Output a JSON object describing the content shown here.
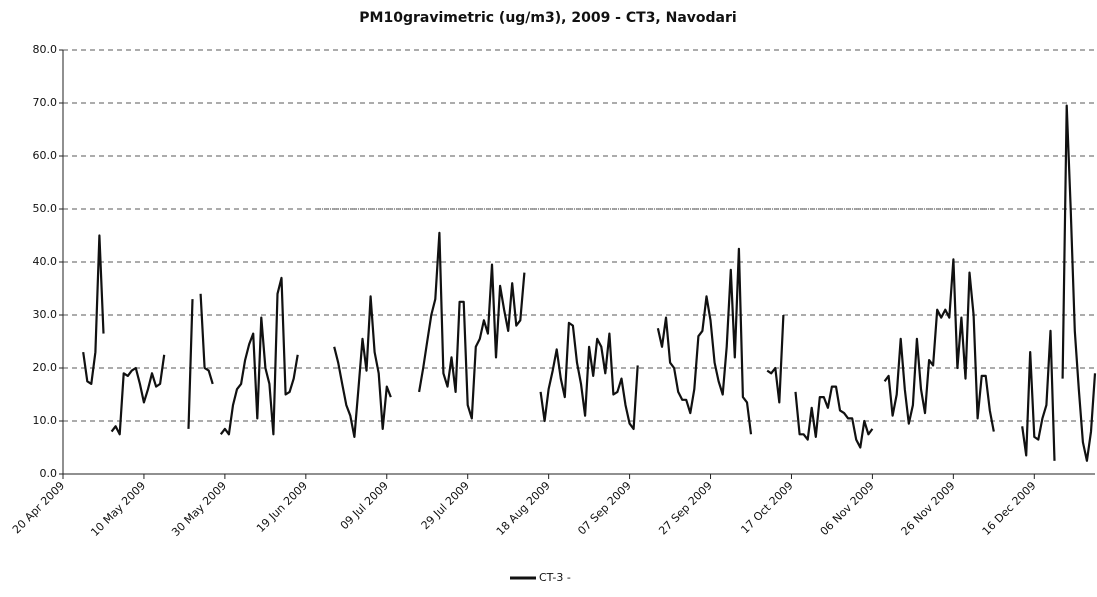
{
  "chart_data": {
    "type": "line",
    "title": "PM10gravimetric (ug/m3), 2009 - CT3, Navodari",
    "x": [
      "2009-04-25",
      "2009-04-26",
      "2009-04-27",
      "2009-04-28",
      "2009-04-29",
      "2009-04-30",
      "2009-05-01",
      "2009-05-02",
      "2009-05-03",
      "2009-05-04",
      "2009-05-05",
      "2009-05-06",
      "2009-05-07",
      "2009-05-08",
      "2009-05-09",
      "2009-05-10",
      "2009-05-11",
      "2009-05-12",
      "2009-05-13",
      "2009-05-14",
      "2009-05-15",
      "2009-05-16",
      "2009-05-21",
      "2009-05-22",
      "2009-05-23",
      "2009-05-24",
      "2009-05-25",
      "2009-05-26",
      "2009-05-27",
      "2009-05-28",
      "2009-05-29",
      "2009-05-30",
      "2009-05-31",
      "2009-06-01",
      "2009-06-02",
      "2009-06-03",
      "2009-06-04",
      "2009-06-05",
      "2009-06-06",
      "2009-06-07",
      "2009-06-08",
      "2009-06-09",
      "2009-06-10",
      "2009-06-11",
      "2009-06-12",
      "2009-06-13",
      "2009-06-14",
      "2009-06-15",
      "2009-06-16",
      "2009-06-17",
      "2009-06-18",
      "2009-06-26",
      "2009-06-27",
      "2009-06-28",
      "2009-06-29",
      "2009-06-30",
      "2009-07-01",
      "2009-07-02",
      "2009-07-03",
      "2009-07-04",
      "2009-07-05",
      "2009-07-06",
      "2009-07-07",
      "2009-07-08",
      "2009-07-09",
      "2009-07-10",
      "2009-07-11",
      "2009-07-17",
      "2009-07-18",
      "2009-07-19",
      "2009-07-20",
      "2009-07-21",
      "2009-07-22",
      "2009-07-23",
      "2009-07-24",
      "2009-07-25",
      "2009-07-26",
      "2009-07-27",
      "2009-07-28",
      "2009-07-29",
      "2009-07-30",
      "2009-07-31",
      "2009-08-01",
      "2009-08-02",
      "2009-08-03",
      "2009-08-04",
      "2009-08-05",
      "2009-08-06",
      "2009-08-07",
      "2009-08-08",
      "2009-08-09",
      "2009-08-10",
      "2009-08-11",
      "2009-08-12",
      "2009-08-13",
      "2009-08-16",
      "2009-08-17",
      "2009-08-18",
      "2009-08-19",
      "2009-08-20",
      "2009-08-21",
      "2009-08-22",
      "2009-08-23",
      "2009-08-24",
      "2009-08-25",
      "2009-08-26",
      "2009-08-27",
      "2009-08-28",
      "2009-08-29",
      "2009-08-30",
      "2009-08-31",
      "2009-09-01",
      "2009-09-02",
      "2009-09-03",
      "2009-09-04",
      "2009-09-05",
      "2009-09-06",
      "2009-09-07",
      "2009-09-08",
      "2009-09-09",
      "2009-09-10",
      "2009-09-14",
      "2009-09-15",
      "2009-09-16",
      "2009-09-17",
      "2009-09-18",
      "2009-09-19",
      "2009-09-20",
      "2009-09-21",
      "2009-09-22",
      "2009-09-23",
      "2009-09-24",
      "2009-09-25",
      "2009-09-26",
      "2009-09-27",
      "2009-09-28",
      "2009-09-29",
      "2009-09-30",
      "2009-10-01",
      "2009-10-02",
      "2009-10-03",
      "2009-10-04",
      "2009-10-05",
      "2009-10-06",
      "2009-10-07",
      "2009-10-08",
      "2009-10-11",
      "2009-10-12",
      "2009-10-13",
      "2009-10-14",
      "2009-10-15",
      "2009-10-16",
      "2009-10-18",
      "2009-10-19",
      "2009-10-20",
      "2009-10-21",
      "2009-10-22",
      "2009-10-23",
      "2009-10-24",
      "2009-10-25",
      "2009-10-26",
      "2009-10-27",
      "2009-10-28",
      "2009-10-29",
      "2009-10-30",
      "2009-10-31",
      "2009-11-01",
      "2009-11-02",
      "2009-11-03",
      "2009-11-04",
      "2009-11-05",
      "2009-11-06",
      "2009-11-07",
      "2009-11-09",
      "2009-11-10",
      "2009-11-11",
      "2009-11-12",
      "2009-11-13",
      "2009-11-14",
      "2009-11-15",
      "2009-11-16",
      "2009-11-17",
      "2009-11-18",
      "2009-11-19",
      "2009-11-20",
      "2009-11-21",
      "2009-11-22",
      "2009-11-23",
      "2009-11-24",
      "2009-11-25",
      "2009-11-26",
      "2009-11-27",
      "2009-11-28",
      "2009-11-29",
      "2009-11-30",
      "2009-12-01",
      "2009-12-02",
      "2009-12-03",
      "2009-12-04",
      "2009-12-05",
      "2009-12-06",
      "2009-12-07",
      "2009-12-13",
      "2009-12-14",
      "2009-12-15",
      "2009-12-16",
      "2009-12-17",
      "2009-12-18",
      "2009-12-19",
      "2009-12-20",
      "2009-12-21",
      "2009-12-22",
      "2009-12-23",
      "2009-12-24",
      "2009-12-25",
      "2009-12-26",
      "2009-12-27",
      "2009-12-28",
      "2009-12-29",
      "2009-12-30",
      "2009-12-31"
    ],
    "series": [
      {
        "name": "CT-3 -",
        "color": "#111111",
        "values": [
          23,
          17.5,
          17,
          23,
          45,
          26.5,
          null,
          8,
          9,
          7.5,
          19,
          18.5,
          19.5,
          20,
          17,
          13.5,
          16,
          19,
          16.5,
          17,
          22.5,
          null,
          8.5,
          33,
          null,
          34,
          20,
          19.5,
          17,
          null,
          7.5,
          8.5,
          7.5,
          13,
          16,
          17,
          21.5,
          24.5,
          26.5,
          10.5,
          29.5,
          20,
          17,
          7.5,
          34,
          37,
          15,
          15.5,
          18,
          22.5,
          null,
          24,
          21,
          17,
          13,
          11,
          7,
          16,
          25.5,
          19.5,
          33.5,
          23,
          19,
          8.5,
          16.5,
          14.5,
          null,
          15.5,
          20,
          25,
          30,
          33,
          45.5,
          19,
          16.5,
          22,
          15.5,
          32.5,
          32.5,
          13,
          10.5,
          24,
          25.5,
          29,
          26.5,
          39.5,
          22,
          35.5,
          31,
          27,
          36,
          28,
          29,
          38,
          null,
          15.5,
          10,
          16,
          19.5,
          23.5,
          18,
          14.5,
          28.5,
          28,
          21,
          17,
          11,
          24,
          18.5,
          25.5,
          24,
          19,
          26.5,
          15,
          15.5,
          18,
          13,
          9.5,
          8.5,
          20.5,
          null,
          27.5,
          24,
          29.5,
          21,
          20,
          15.5,
          14,
          14,
          11.5,
          16,
          26,
          27,
          33.5,
          29,
          21,
          17.5,
          15,
          24,
          38.5,
          22,
          42.5,
          14.5,
          13.5,
          7.5,
          null,
          19.5,
          19,
          20,
          13.5,
          30,
          null,
          15.5,
          7.5,
          7.5,
          6.5,
          12.5,
          7,
          14.5,
          14.5,
          12.5,
          16.5,
          16.5,
          12,
          11.5,
          10.5,
          10.5,
          6.5,
          5,
          10,
          7.5,
          8.5,
          null,
          17.5,
          18.5,
          11,
          15,
          25.5,
          16,
          9.5,
          13,
          25.5,
          16,
          11.5,
          21.5,
          20.5,
          31,
          29.5,
          31,
          29.5,
          40.5,
          20,
          29.5,
          18,
          38,
          30,
          10.5,
          18.5,
          18.5,
          12,
          8,
          null,
          9,
          3.5,
          23,
          7,
          6.5,
          10.5,
          13,
          27,
          2.5,
          null,
          18,
          69.5,
          50,
          27,
          16,
          6,
          2.5,
          8,
          19
        ]
      }
    ],
    "reference_line": {
      "value": 50,
      "from": "2009-06-22",
      "to": "2009-12-06",
      "color": "#999999"
    },
    "xlim": [
      "2009-04-20",
      "2009-12-31"
    ],
    "xticks": [
      {
        "value": "2009-04-20",
        "label": "20 Apr 2009"
      },
      {
        "value": "2009-05-10",
        "label": "10 May 2009"
      },
      {
        "value": "2009-05-30",
        "label": "30 May 2009"
      },
      {
        "value": "2009-06-19",
        "label": "19 Jun 2009"
      },
      {
        "value": "2009-07-09",
        "label": "09 Jul 2009"
      },
      {
        "value": "2009-07-29",
        "label": "29 Jul 2009"
      },
      {
        "value": "2009-08-18",
        "label": "18 Aug 2009"
      },
      {
        "value": "2009-09-07",
        "label": "07 Sep 2009"
      },
      {
        "value": "2009-09-27",
        "label": "27 Sep 2009"
      },
      {
        "value": "2009-10-17",
        "label": "17 Oct 2009"
      },
      {
        "value": "2009-11-06",
        "label": "06 Nov 2009"
      },
      {
        "value": "2009-11-26",
        "label": "26 Nov 2009"
      },
      {
        "value": "2009-12-16",
        "label": "16 Dec 2009"
      }
    ],
    "ylim": [
      0,
      80
    ],
    "yticks": [
      {
        "value": 0,
        "label": "0.0"
      },
      {
        "value": 10,
        "label": "10.0"
      },
      {
        "value": 20,
        "label": "20.0"
      },
      {
        "value": 30,
        "label": "30.0"
      },
      {
        "value": 40,
        "label": "40.0"
      },
      {
        "value": 50,
        "label": "50.0"
      },
      {
        "value": 60,
        "label": "60.0"
      },
      {
        "value": 70,
        "label": "70.0"
      },
      {
        "value": 80,
        "label": "80.0"
      }
    ],
    "grid": true
  }
}
